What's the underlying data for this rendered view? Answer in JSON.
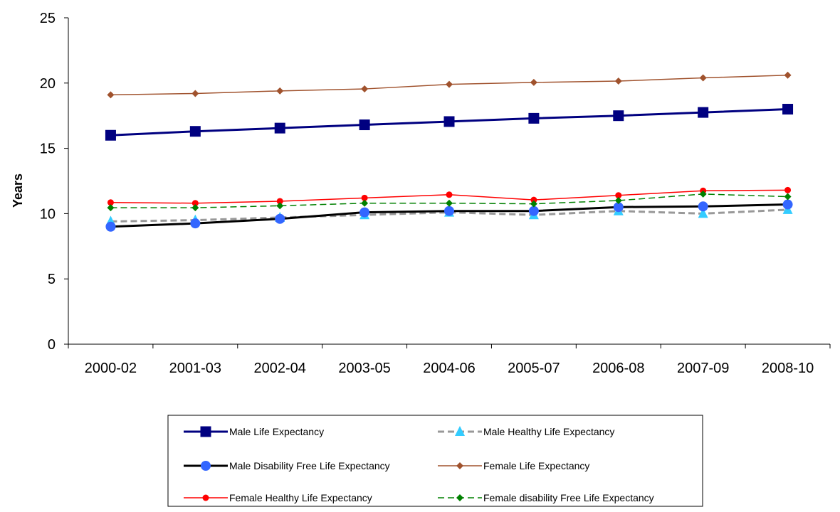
{
  "chart_data": {
    "type": "line",
    "ylabel": "Years",
    "xlabel": "",
    "title": "",
    "categories": [
      "2000-02",
      "2001-03",
      "2002-04",
      "2003-05",
      "2004-06",
      "2005-07",
      "2006-08",
      "2007-09",
      "2008-10"
    ],
    "ylim": [
      0,
      25
    ],
    "yticks": [
      0,
      5,
      10,
      15,
      20,
      25
    ],
    "grid": false,
    "legend_position": "bottom",
    "series": [
      {
        "name": "Male Life Expectancy",
        "values": [
          16.0,
          16.3,
          16.55,
          16.8,
          17.05,
          17.3,
          17.5,
          17.75,
          18.0
        ],
        "color": "#000080",
        "marker": "square",
        "dash": "solid",
        "width": 3
      },
      {
        "name": "Male Healthy Life Expectancy",
        "values": [
          9.4,
          9.5,
          9.7,
          9.9,
          10.1,
          9.9,
          10.2,
          10.0,
          10.3
        ],
        "color": "#999999",
        "markerColor": "#33ccff",
        "marker": "triangle",
        "dash": "dashed",
        "width": 3
      },
      {
        "name": "Male Disability Free Life Expectancy",
        "values": [
          9.0,
          9.25,
          9.6,
          10.1,
          10.2,
          10.2,
          10.5,
          10.55,
          10.7
        ],
        "color": "#000000",
        "markerColor": "#3366ff",
        "marker": "circle",
        "dash": "solid",
        "width": 3
      },
      {
        "name": "Female Life Expectancy",
        "values": [
          19.1,
          19.2,
          19.4,
          19.55,
          19.9,
          20.05,
          20.15,
          20.4,
          20.6
        ],
        "color": "#a0522d",
        "markerColor": "#a0522d",
        "marker": "diamond",
        "dash": "solid",
        "width": 1.5
      },
      {
        "name": "Female Healthy Life Expectancy",
        "values": [
          10.85,
          10.8,
          10.95,
          11.2,
          11.45,
          11.05,
          11.4,
          11.75,
          11.8
        ],
        "color": "#ff0000",
        "markerColor": "#ff0000",
        "marker": "circle-small",
        "dash": "solid",
        "width": 1.5
      },
      {
        "name": "Female disability Free Life Expectancy",
        "values": [
          10.45,
          10.45,
          10.6,
          10.8,
          10.8,
          10.75,
          11.0,
          11.5,
          11.3
        ],
        "color": "#008000",
        "markerColor": "#008000",
        "marker": "diamond",
        "dash": "dashed",
        "width": 1.5
      }
    ]
  }
}
